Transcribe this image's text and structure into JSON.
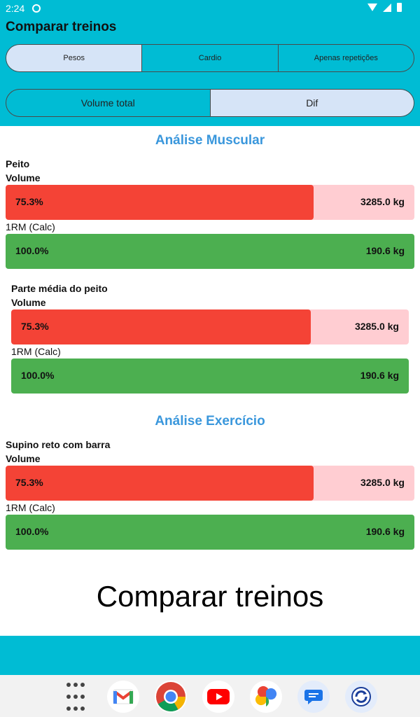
{
  "status": {
    "time": "2:24"
  },
  "app": {
    "title": "Comparar treinos"
  },
  "tabs": [
    {
      "label": "Pesos",
      "selected": true
    },
    {
      "label": "Cardio",
      "selected": false
    },
    {
      "label": "Apenas repetições",
      "selected": false
    }
  ],
  "modes": [
    {
      "label": "Volume total",
      "selected": false
    },
    {
      "label": "Dif",
      "selected": true
    }
  ],
  "muscle": {
    "title": "Análise Muscular",
    "groups": [
      {
        "name": "Peito",
        "volume_label": "Volume",
        "volume_pct": "75.3%",
        "volume_value": "3285.0 kg",
        "volume_fraction": 0.753,
        "rm_label": "1RM (Calc)",
        "rm_pct": "100.0%",
        "rm_value": "190.6 kg"
      },
      {
        "name": "Parte média do peito",
        "volume_label": "Volume",
        "volume_pct": "75.3%",
        "volume_value": "3285.0 kg",
        "volume_fraction": 0.753,
        "rm_label": "1RM (Calc)",
        "rm_pct": "100.0%",
        "rm_value": "190.6 kg"
      }
    ]
  },
  "exercise": {
    "title": "Análise Exercício",
    "items": [
      {
        "name": "Supino reto com barra",
        "volume_label": "Volume",
        "volume_pct": "75.3%",
        "volume_value": "3285.0 kg",
        "volume_fraction": 0.753,
        "rm_label": "1RM (Calc)",
        "rm_pct": "100.0%",
        "rm_value": "190.6 kg"
      }
    ]
  },
  "footer": {
    "text": "Comparar treinos"
  },
  "dock": [
    "apps-grid-icon",
    "gmail-icon",
    "chrome-icon",
    "youtube-icon",
    "photos-icon",
    "messages-icon",
    "sync-app-icon"
  ],
  "colors": {
    "header": "#00bcd4",
    "accent_blue": "#3a97dc",
    "bar_red": "#f44336",
    "bar_red_light": "#ffcdd2",
    "bar_green": "#4caf50",
    "selected_tab": "#d6e4f7"
  }
}
